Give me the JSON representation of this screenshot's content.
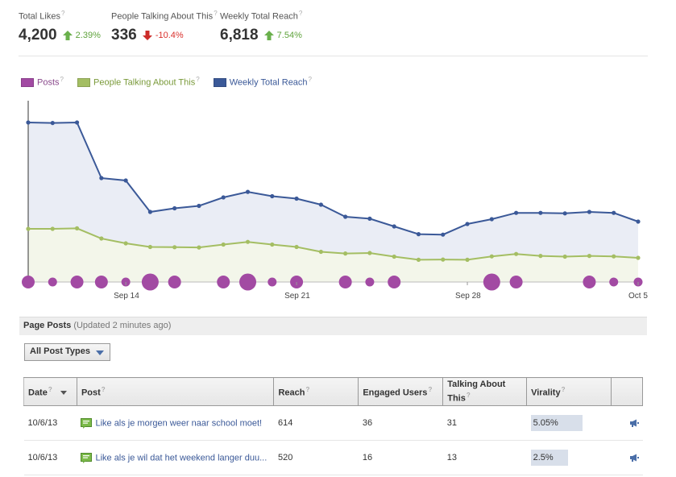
{
  "metrics": [
    {
      "label": "Total Likes",
      "value": "4,200",
      "change": "2.39%",
      "direction": "up"
    },
    {
      "label": "People Talking About This",
      "value": "336",
      "change": "-10.4%",
      "direction": "down"
    },
    {
      "label": "Weekly Total Reach",
      "value": "6,818",
      "change": "7.54%",
      "direction": "up"
    }
  ],
  "help_mark": "?",
  "legend": [
    {
      "label": "Posts",
      "color": "#a24aa3",
      "text_color": "#8a4a8c"
    },
    {
      "label": "People Talking About This",
      "color": "#a4be63",
      "text_color": "#7a9a3a"
    },
    {
      "label": "Weekly Total Reach",
      "color": "#3b5998",
      "text_color": "#3b5998"
    }
  ],
  "chart_data": {
    "type": "line",
    "x_ticks": [
      "Sep 14",
      "Sep 21",
      "Sep 28",
      "Oct 5"
    ],
    "series": [
      {
        "name": "Weekly Total Reach",
        "color": "#3b5998",
        "fill": "#eaedf5",
        "values": [
          6.6,
          6.58,
          6.6,
          4.3,
          4.2,
          2.9,
          3.05,
          3.15,
          3.5,
          3.73,
          3.55,
          3.45,
          3.2,
          2.7,
          2.62,
          2.3,
          1.98,
          1.96,
          2.4,
          2.6,
          2.86,
          2.86,
          2.84,
          2.9,
          2.86,
          2.5
        ]
      },
      {
        "name": "People Talking About This",
        "color": "#a4be63",
        "fill": "#f3f6ea",
        "values": [
          2.2,
          2.2,
          2.22,
          1.8,
          1.6,
          1.45,
          1.44,
          1.43,
          1.55,
          1.66,
          1.55,
          1.45,
          1.25,
          1.18,
          1.2,
          1.05,
          0.92,
          0.93,
          0.92,
          1.06,
          1.16,
          1.08,
          1.05,
          1.08,
          1.06,
          1.0
        ]
      },
      {
        "name": "Posts",
        "color": "#a24aa3",
        "values": [
          2,
          1,
          2,
          2,
          1,
          3,
          2,
          0,
          2,
          3,
          1,
          2,
          0,
          2,
          1,
          2,
          0,
          0,
          0,
          3,
          2,
          0,
          0,
          2,
          1,
          1
        ]
      }
    ]
  },
  "posts_section": {
    "title": "Page Posts",
    "updated": "(Updated 2 minutes ago)"
  },
  "filter": {
    "selected": "All Post Types"
  },
  "table": {
    "headers": [
      "Date",
      "Post",
      "Reach",
      "Engaged Users",
      "Talking About This",
      "Virality"
    ],
    "rows": [
      {
        "date": "10/6/13",
        "post": "Like als je morgen weer naar school moet!",
        "reach": "614",
        "engaged": "36",
        "talking": "31",
        "virality": "5.05%",
        "virality_frac": 0.65
      },
      {
        "date": "10/6/13",
        "post": "Like als je wil dat het weekend langer duu...",
        "reach": "520",
        "engaged": "16",
        "talking": "13",
        "virality": "2.5%",
        "virality_frac": 0.5
      }
    ]
  }
}
